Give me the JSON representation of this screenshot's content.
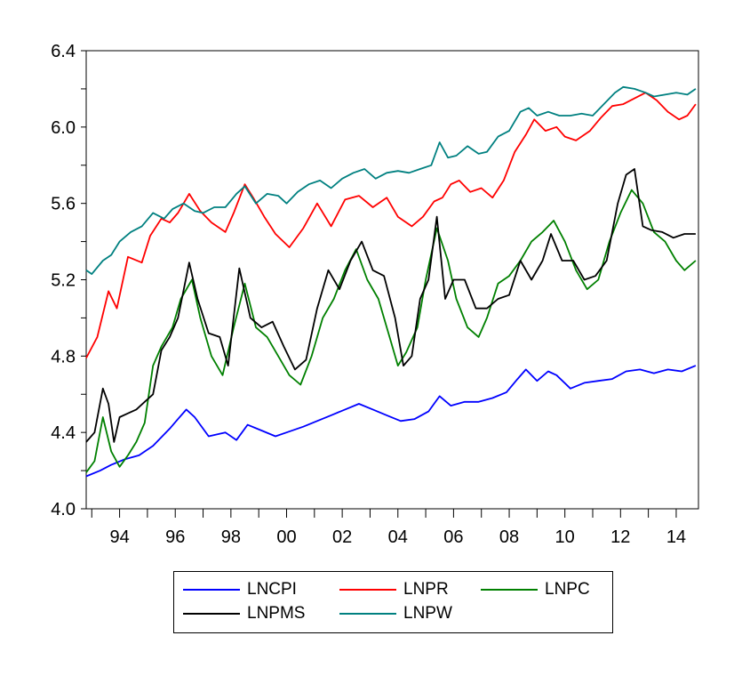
{
  "chart_data": {
    "type": "line",
    "title": "",
    "xlabel": "",
    "ylabel": "",
    "xlim": [
      1992.8,
      2014.8
    ],
    "ylim": [
      4.0,
      6.4
    ],
    "x_ticks": [
      {
        "value": 1994,
        "label": "94"
      },
      {
        "value": 1996,
        "label": "96"
      },
      {
        "value": 1998,
        "label": "98"
      },
      {
        "value": 2000,
        "label": "00"
      },
      {
        "value": 2002,
        "label": "02"
      },
      {
        "value": 2004,
        "label": "04"
      },
      {
        "value": 2006,
        "label": "06"
      },
      {
        "value": 2008,
        "label": "08"
      },
      {
        "value": 2010,
        "label": "10"
      },
      {
        "value": 2012,
        "label": "12"
      },
      {
        "value": 2014,
        "label": "14"
      }
    ],
    "y_ticks": [
      {
        "value": 4.0,
        "label": "4.0"
      },
      {
        "value": 4.4,
        "label": "4.4"
      },
      {
        "value": 4.8,
        "label": "4.8"
      },
      {
        "value": 5.2,
        "label": "5.2"
      },
      {
        "value": 5.6,
        "label": "5.6"
      },
      {
        "value": 6.0,
        "label": "6.0"
      },
      {
        "value": 6.4,
        "label": "6.4"
      }
    ],
    "grid": false,
    "legend_position": "bottom",
    "series": [
      {
        "name": "LNCPI",
        "color": "#0000ff",
        "x": [
          1992.8,
          1993.3,
          1993.7,
          1994.2,
          1994.7,
          1995.2,
          1995.8,
          1996.1,
          1996.4,
          1996.7,
          1997.2,
          1997.8,
          1998.2,
          1998.6,
          1999.1,
          1999.6,
          2000.0,
          2000.6,
          2001.1,
          2001.6,
          2002.1,
          2002.6,
          2003.1,
          2003.6,
          2004.1,
          2004.6,
          2005.1,
          2005.5,
          2005.9,
          2006.4,
          2006.9,
          2007.4,
          2007.9,
          2008.3,
          2008.6,
          2009.0,
          2009.4,
          2009.7,
          2010.2,
          2010.7,
          2011.2,
          2011.7,
          2012.2,
          2012.7,
          2013.2,
          2013.7,
          2014.2,
          2014.7
        ],
        "y": [
          4.17,
          4.2,
          4.23,
          4.26,
          4.28,
          4.33,
          4.42,
          4.47,
          4.52,
          4.48,
          4.38,
          4.4,
          4.36,
          4.44,
          4.41,
          4.38,
          4.4,
          4.43,
          4.46,
          4.49,
          4.52,
          4.55,
          4.52,
          4.49,
          4.46,
          4.47,
          4.51,
          4.59,
          4.54,
          4.56,
          4.56,
          4.58,
          4.61,
          4.68,
          4.73,
          4.67,
          4.72,
          4.7,
          4.63,
          4.66,
          4.67,
          4.68,
          4.72,
          4.73,
          4.71,
          4.73,
          4.72,
          4.75
        ]
      },
      {
        "name": "LNPR",
        "color": "#ff0000",
        "x": [
          1992.8,
          1993.2,
          1993.6,
          1993.9,
          1994.3,
          1994.8,
          1995.1,
          1995.5,
          1995.8,
          1996.1,
          1996.5,
          1996.9,
          1997.3,
          1997.8,
          1998.1,
          1998.5,
          1998.8,
          1999.2,
          1999.6,
          2000.1,
          2000.6,
          2001.1,
          2001.6,
          2002.1,
          2002.6,
          2003.1,
          2003.6,
          2004.0,
          2004.5,
          2004.9,
          2005.3,
          2005.6,
          2005.9,
          2006.2,
          2006.6,
          2007.0,
          2007.4,
          2007.8,
          2008.2,
          2008.6,
          2008.9,
          2009.3,
          2009.7,
          2010.0,
          2010.4,
          2010.9,
          2011.3,
          2011.7,
          2012.1,
          2012.5,
          2012.9,
          2013.3,
          2013.7,
          2014.1,
          2014.4,
          2014.7
        ],
        "y": [
          4.79,
          4.9,
          5.14,
          5.05,
          5.32,
          5.29,
          5.43,
          5.52,
          5.5,
          5.55,
          5.65,
          5.56,
          5.5,
          5.45,
          5.55,
          5.7,
          5.63,
          5.53,
          5.44,
          5.37,
          5.47,
          5.6,
          5.48,
          5.62,
          5.64,
          5.58,
          5.63,
          5.53,
          5.48,
          5.53,
          5.61,
          5.63,
          5.7,
          5.72,
          5.66,
          5.68,
          5.63,
          5.72,
          5.87,
          5.96,
          6.04,
          5.98,
          6.0,
          5.95,
          5.93,
          5.98,
          6.05,
          6.11,
          6.12,
          6.15,
          6.18,
          6.14,
          6.08,
          6.04,
          6.06,
          6.12
        ]
      },
      {
        "name": "LNPC",
        "color": "#008000",
        "x": [
          1992.8,
          1993.1,
          1993.4,
          1993.7,
          1994.0,
          1994.3,
          1994.6,
          1994.9,
          1995.2,
          1995.5,
          1995.9,
          1996.2,
          1996.6,
          1996.9,
          1997.3,
          1997.7,
          1998.1,
          1998.5,
          1998.9,
          1999.3,
          1999.7,
          2000.1,
          2000.5,
          2000.9,
          2001.3,
          2001.7,
          2002.1,
          2002.5,
          2002.9,
          2003.3,
          2003.7,
          2004.0,
          2004.3,
          2004.7,
          2005.0,
          2005.4,
          2005.8,
          2006.1,
          2006.5,
          2006.9,
          2007.2,
          2007.6,
          2008.0,
          2008.4,
          2008.8,
          2009.2,
          2009.6,
          2010.0,
          2010.4,
          2010.8,
          2011.2,
          2011.6,
          2012.0,
          2012.4,
          2012.8,
          2013.2,
          2013.6,
          2014.0,
          2014.3,
          2014.7
        ],
        "y": [
          4.19,
          4.25,
          4.48,
          4.3,
          4.22,
          4.28,
          4.35,
          4.45,
          4.75,
          4.85,
          4.95,
          5.1,
          5.2,
          5.0,
          4.8,
          4.7,
          4.95,
          5.18,
          4.95,
          4.9,
          4.8,
          4.7,
          4.65,
          4.8,
          5.0,
          5.1,
          5.25,
          5.36,
          5.2,
          5.1,
          4.9,
          4.75,
          4.82,
          4.95,
          5.2,
          5.47,
          5.3,
          5.1,
          4.95,
          4.9,
          5.0,
          5.18,
          5.22,
          5.3,
          5.4,
          5.45,
          5.51,
          5.4,
          5.25,
          5.15,
          5.2,
          5.4,
          5.55,
          5.67,
          5.6,
          5.45,
          5.4,
          5.3,
          5.25,
          5.3
        ]
      },
      {
        "name": "LNPMS",
        "color": "#000000",
        "x": [
          1992.8,
          1993.1,
          1993.4,
          1993.6,
          1993.8,
          1994.0,
          1994.3,
          1994.6,
          1994.9,
          1995.2,
          1995.5,
          1995.8,
          1996.1,
          1996.5,
          1996.8,
          1997.2,
          1997.6,
          1997.9,
          1998.3,
          1998.7,
          1999.1,
          1999.5,
          1999.9,
          2000.3,
          2000.7,
          2001.1,
          2001.5,
          2001.9,
          2002.3,
          2002.7,
          2003.1,
          2003.5,
          2003.9,
          2004.2,
          2004.5,
          2004.8,
          2005.1,
          2005.4,
          2005.7,
          2006.0,
          2006.4,
          2006.8,
          2007.2,
          2007.6,
          2008.0,
          2008.4,
          2008.8,
          2009.2,
          2009.5,
          2009.9,
          2010.3,
          2010.7,
          2011.1,
          2011.5,
          2011.9,
          2012.2,
          2012.5,
          2012.8,
          2013.1,
          2013.5,
          2013.9,
          2014.3,
          2014.7
        ],
        "y": [
          4.35,
          4.4,
          4.63,
          4.55,
          4.35,
          4.48,
          4.5,
          4.52,
          4.56,
          4.6,
          4.83,
          4.9,
          5.0,
          5.29,
          5.1,
          4.92,
          4.9,
          4.75,
          5.26,
          5.0,
          4.95,
          4.98,
          4.85,
          4.73,
          4.78,
          5.05,
          5.25,
          5.15,
          5.3,
          5.4,
          5.25,
          5.22,
          5.0,
          4.75,
          4.8,
          5.1,
          5.2,
          5.53,
          5.1,
          5.2,
          5.2,
          5.05,
          5.05,
          5.1,
          5.12,
          5.3,
          5.2,
          5.3,
          5.44,
          5.3,
          5.3,
          5.2,
          5.22,
          5.3,
          5.6,
          5.75,
          5.78,
          5.48,
          5.46,
          5.45,
          5.42,
          5.44,
          5.44
        ]
      },
      {
        "name": "LNPW",
        "color": "#008080",
        "x": [
          1992.8,
          1993.0,
          1993.4,
          1993.7,
          1994.0,
          1994.4,
          1994.8,
          1995.2,
          1995.6,
          1995.9,
          1996.3,
          1996.7,
          1997.0,
          1997.4,
          1997.8,
          1998.2,
          1998.5,
          1998.9,
          1999.3,
          1999.7,
          2000.0,
          2000.4,
          2000.8,
          2001.2,
          2001.6,
          2002.0,
          2002.4,
          2002.8,
          2003.2,
          2003.6,
          2004.0,
          2004.4,
          2004.8,
          2005.2,
          2005.5,
          2005.8,
          2006.1,
          2006.5,
          2006.9,
          2007.2,
          2007.6,
          2008.0,
          2008.4,
          2008.7,
          2009.0,
          2009.4,
          2009.8,
          2010.2,
          2010.6,
          2011.0,
          2011.4,
          2011.8,
          2012.1,
          2012.5,
          2012.9,
          2013.2,
          2013.6,
          2014.0,
          2014.4,
          2014.7
        ],
        "y": [
          5.25,
          5.23,
          5.3,
          5.33,
          5.4,
          5.45,
          5.48,
          5.55,
          5.52,
          5.57,
          5.6,
          5.56,
          5.55,
          5.58,
          5.58,
          5.65,
          5.69,
          5.6,
          5.65,
          5.64,
          5.6,
          5.66,
          5.7,
          5.72,
          5.68,
          5.73,
          5.76,
          5.78,
          5.73,
          5.76,
          5.77,
          5.76,
          5.78,
          5.8,
          5.92,
          5.84,
          5.85,
          5.9,
          5.86,
          5.87,
          5.95,
          5.98,
          6.08,
          6.1,
          6.06,
          6.08,
          6.06,
          6.06,
          6.07,
          6.06,
          6.12,
          6.18,
          6.21,
          6.2,
          6.18,
          6.16,
          6.17,
          6.18,
          6.17,
          6.2
        ]
      }
    ]
  }
}
